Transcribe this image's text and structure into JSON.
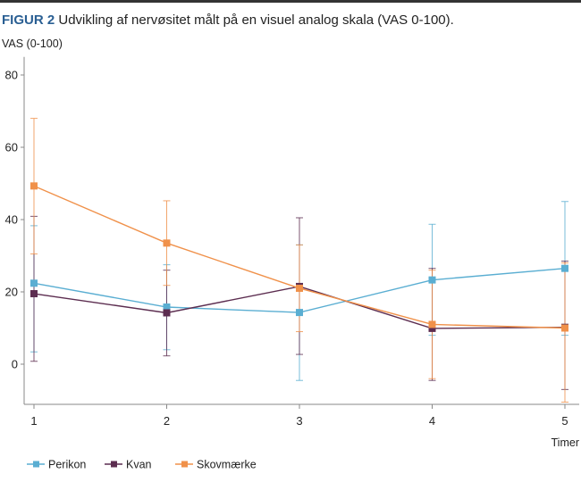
{
  "figure_label": "FIGUR 2",
  "caption": "Udvikling af nervøsitet målt på en visuel analog skala (VAS 0-100).",
  "chart_data": {
    "type": "line",
    "title": "Udvikling af nervøsitet målt på en visuel analog skala (VAS 0-100).",
    "xlabel": "Timer",
    "ylabel": "VAS (0-100)",
    "x": [
      1,
      2,
      3,
      4,
      5
    ],
    "x_ticks": [
      "1",
      "2",
      "3",
      "4",
      "5"
    ],
    "y_ticks": [
      "0",
      "20",
      "40",
      "60",
      "80"
    ],
    "ylim": [
      -11,
      85
    ],
    "xlim": [
      1,
      5
    ],
    "grid": false,
    "legend_position": "bottom",
    "series": [
      {
        "name": "Perikon",
        "color": "#5aaed2",
        "values": [
          22.4,
          15.8,
          14.3,
          23.3,
          26.5
        ],
        "err_low": [
          3.4,
          4.0,
          -4.5,
          8.0,
          8.0
        ],
        "err_high": [
          38.3,
          27.5,
          33.0,
          38.7,
          45.0
        ]
      },
      {
        "name": "Kvan",
        "color": "#5c2d50",
        "values": [
          19.5,
          14.2,
          21.5,
          9.9,
          10.2
        ],
        "err_low": [
          0.8,
          2.3,
          2.7,
          -4.5,
          -7.0
        ],
        "err_high": [
          40.9,
          26.0,
          40.5,
          26.5,
          28.5
        ]
      },
      {
        "name": "Skovmærke",
        "color": "#f0914a",
        "values": [
          49.3,
          33.5,
          21.0,
          11.0,
          10.0
        ],
        "err_low": [
          30.5,
          21.8,
          9.0,
          -4.0,
          -10.5
        ],
        "err_high": [
          68.0,
          45.2,
          33.0,
          26.0,
          28.0
        ]
      }
    ]
  }
}
